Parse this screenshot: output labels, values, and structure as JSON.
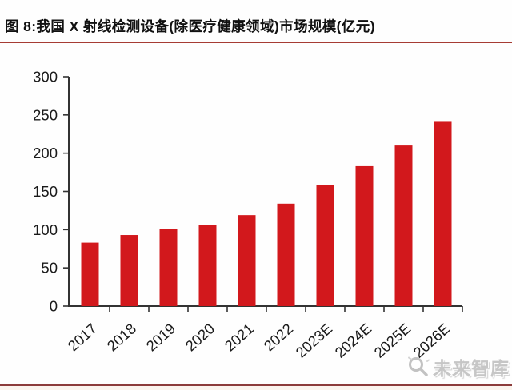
{
  "title": "图 8:我国 X 射线检测设备(除医疗健康领域)市场规模(亿元)",
  "watermark": {
    "name": "未来智库",
    "icon": "magnifier-icon"
  },
  "colors": {
    "bar": "#d2181c",
    "title_underline": "#a63c34",
    "bottom_rule": "#8c3c3c",
    "axis": "#333333",
    "tick_text": "#1a1a1a",
    "watermark_text": "#c6c6c6"
  },
  "chart_data": {
    "type": "bar",
    "title": "我国X射线检测设备(除医疗健康领域)市场规模(亿元)",
    "categories": [
      "2017",
      "2018",
      "2019",
      "2020",
      "2021",
      "2022",
      "2023E",
      "2024E",
      "2025E",
      "2026E"
    ],
    "values": [
      83,
      93,
      101,
      106,
      119,
      134,
      158,
      183,
      210,
      241
    ],
    "xlabel": "",
    "ylabel": "",
    "ylim": [
      0,
      300
    ],
    "yticks": [
      0,
      50,
      100,
      150,
      200,
      250,
      300
    ],
    "grid": false,
    "legend": null,
    "bar_color": "#d2181c",
    "x_label_rotation_deg": -42
  }
}
